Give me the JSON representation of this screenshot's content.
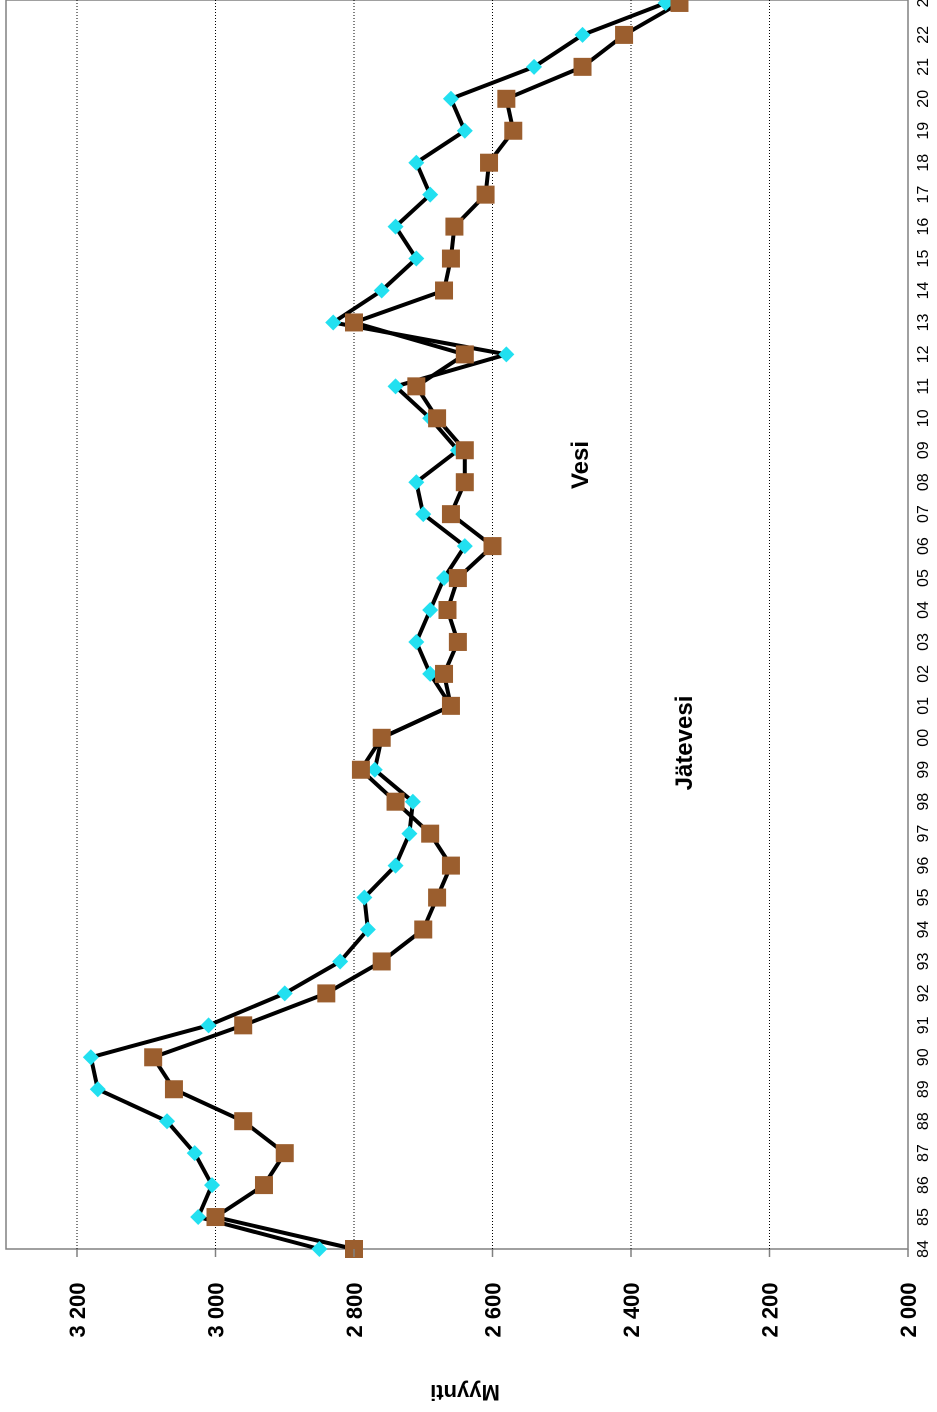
{
  "chart_data": {
    "type": "line",
    "orientation": "rotated-90",
    "ylabel": "Myynti",
    "xlabel": "",
    "ylim": [
      2000,
      3200
    ],
    "yticks": [
      2000,
      2200,
      2400,
      2600,
      2800,
      3000,
      3200
    ],
    "ytick_labels": [
      "2 000",
      "2 200",
      "2 400",
      "2 600",
      "2 800",
      "3 000",
      "3 200"
    ],
    "grid": "horizontal",
    "legend": "none",
    "categories": [
      "84",
      "85",
      "86",
      "87",
      "88",
      "89",
      "90",
      "91",
      "92",
      "93",
      "94",
      "95",
      "96",
      "97",
      "98",
      "99",
      "00",
      "01",
      "02",
      "03",
      "04",
      "05",
      "06",
      "07",
      "08",
      "09",
      "10",
      "11",
      "12",
      "13",
      "14",
      "15",
      "16",
      "17",
      "18",
      "19",
      "20",
      "21",
      "22",
      "2"
    ],
    "series": [
      {
        "name": "Vesi",
        "marker": "diamond",
        "color": "#22e0f0",
        "values": [
          2850,
          3025,
          3005,
          3030,
          3070,
          3170,
          3180,
          3010,
          2900,
          2820,
          2780,
          2785,
          2740,
          2720,
          2715,
          2770,
          2760,
          2660,
          2690,
          2710,
          2690,
          2670,
          2640,
          2700,
          2710,
          2650,
          2690,
          2740,
          2580,
          2830,
          2760,
          2710,
          2740,
          2690,
          2710,
          2640,
          2660,
          2540,
          2470,
          2350
        ],
        "annotations": [
          {
            "text": "Vesi"
          }
        ]
      },
      {
        "name": "Jätevesi",
        "marker": "square",
        "color": "#9b5e2e",
        "values": [
          2800,
          3000,
          2930,
          2900,
          2960,
          3060,
          3090,
          2960,
          2840,
          2760,
          2700,
          2680,
          2660,
          2690,
          2740,
          2790,
          2760,
          2660,
          2670,
          2650,
          2665,
          2650,
          2600,
          2660,
          2640,
          2640,
          2680,
          2710,
          2640,
          2800,
          2670,
          2660,
          2655,
          2610,
          2605,
          2570,
          2580,
          2470,
          2410,
          2330
        ],
        "annotations": [
          {
            "text": "Jätevesi"
          }
        ]
      }
    ]
  }
}
